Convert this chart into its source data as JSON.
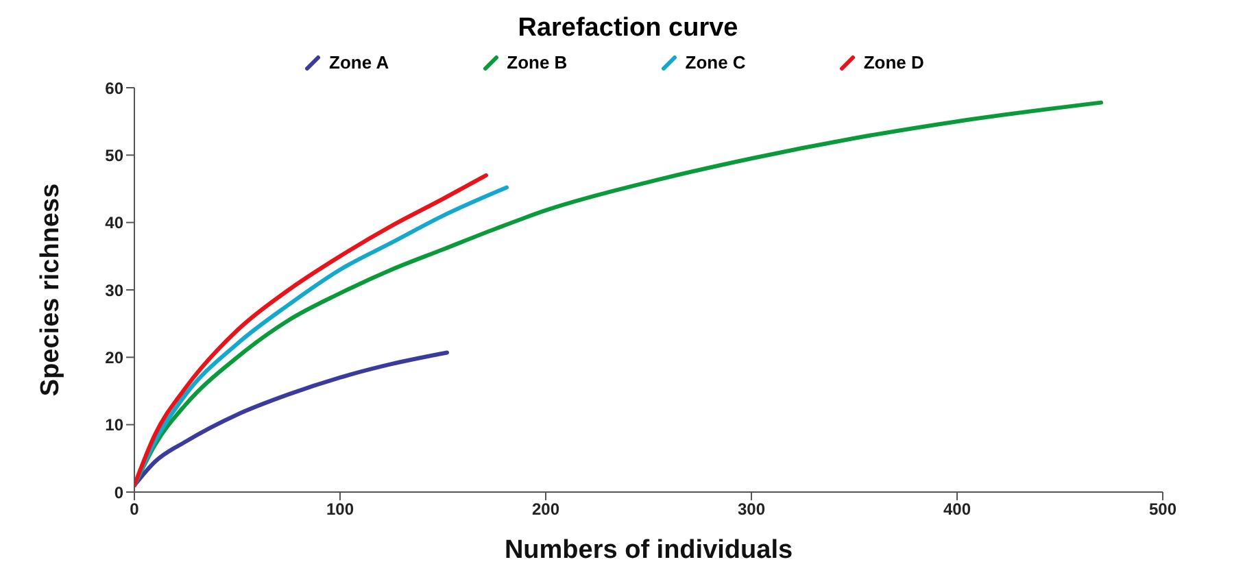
{
  "chart_data": {
    "type": "line",
    "title": "Rarefaction curve",
    "xlabel": "Numbers of individuals",
    "ylabel": "Species richness",
    "xlim": [
      0,
      500
    ],
    "xticks": [
      0,
      100,
      200,
      300,
      400,
      500
    ],
    "ylim": [
      0,
      60
    ],
    "yticks": [
      0,
      10,
      20,
      30,
      40,
      50,
      60
    ],
    "grid": false,
    "legend": "top",
    "marker": "none",
    "line_style": "solid",
    "series": [
      {
        "name": "Zone A",
        "color": "#3b3b9e",
        "x": [
          0,
          10,
          25,
          50,
          75,
          100,
          125,
          152
        ],
        "values": [
          1,
          4.5,
          7.5,
          11.5,
          14.5,
          17,
          19,
          20.7
        ]
      },
      {
        "name": "Zone B",
        "color": "#0a9a3a",
        "x": [
          0,
          10,
          25,
          50,
          75,
          100,
          125,
          150,
          175,
          200,
          250,
          300,
          350,
          400,
          470
        ],
        "values": [
          1,
          7,
          13,
          20,
          25.5,
          29.5,
          33,
          36,
          39,
          41.8,
          46,
          49.5,
          52.5,
          55,
          57.8
        ]
      },
      {
        "name": "Zone C",
        "color": "#13a8cc",
        "x": [
          0,
          10,
          25,
          50,
          75,
          100,
          125,
          150,
          181
        ],
        "values": [
          1,
          7.5,
          14.5,
          22,
          27.8,
          33,
          37,
          41,
          45.2
        ]
      },
      {
        "name": "Zone D",
        "color": "#e8141c",
        "x": [
          0,
          10,
          25,
          50,
          75,
          100,
          125,
          150,
          171
        ],
        "values": [
          1,
          8.5,
          15.5,
          24,
          30,
          35,
          39.5,
          43.5,
          47
        ]
      }
    ]
  }
}
